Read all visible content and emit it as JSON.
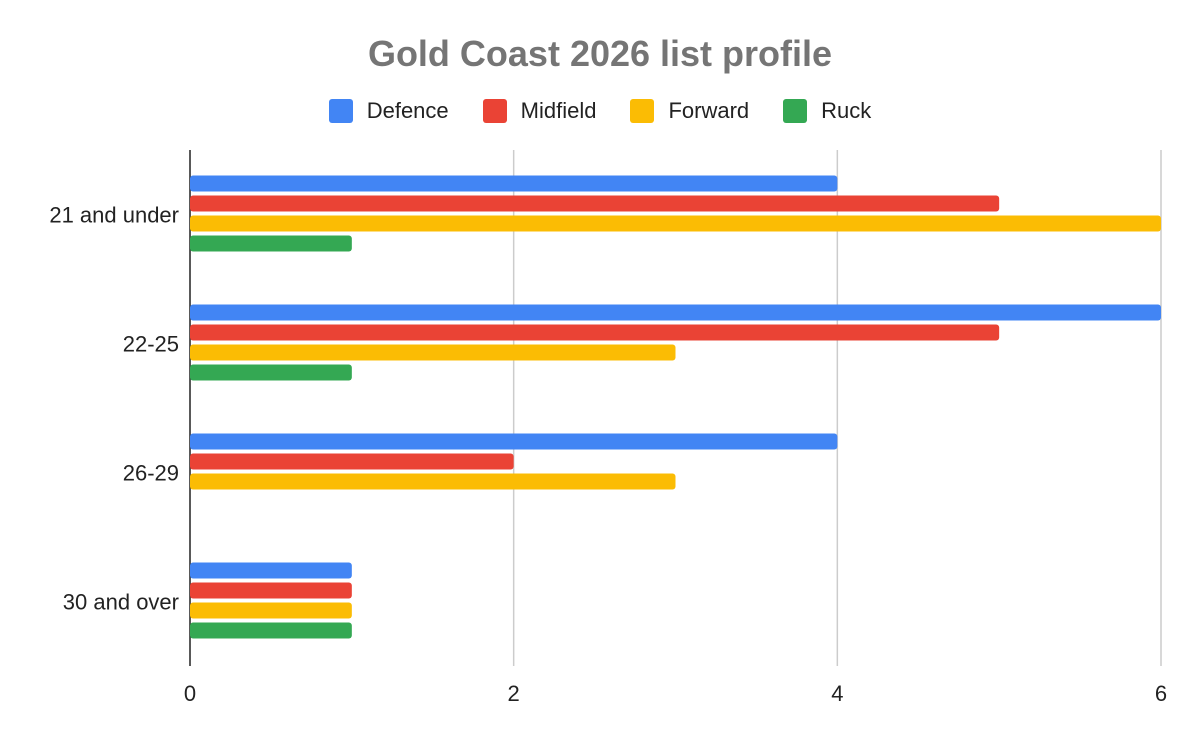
{
  "chart_data": {
    "type": "bar",
    "orientation": "horizontal",
    "title": "Gold Coast 2026 list profile",
    "categories": [
      "21 and under",
      "22-25",
      "26-29",
      "30 and over"
    ],
    "series": [
      {
        "name": "Defence",
        "color": "#4285F4",
        "values": [
          4,
          6,
          4,
          1
        ]
      },
      {
        "name": "Midfield",
        "color": "#EA4335",
        "values": [
          5,
          5,
          2,
          1
        ]
      },
      {
        "name": "Forward",
        "color": "#FBBC04",
        "values": [
          6,
          3,
          3,
          1
        ]
      },
      {
        "name": "Ruck",
        "color": "#34A853",
        "values": [
          1,
          1,
          0,
          1
        ]
      }
    ],
    "xlim": [
      0,
      6
    ],
    "xticks": [
      "0",
      "2",
      "4",
      "6"
    ],
    "xlabel": "",
    "ylabel": "",
    "grid": true,
    "legend_position": "top"
  }
}
